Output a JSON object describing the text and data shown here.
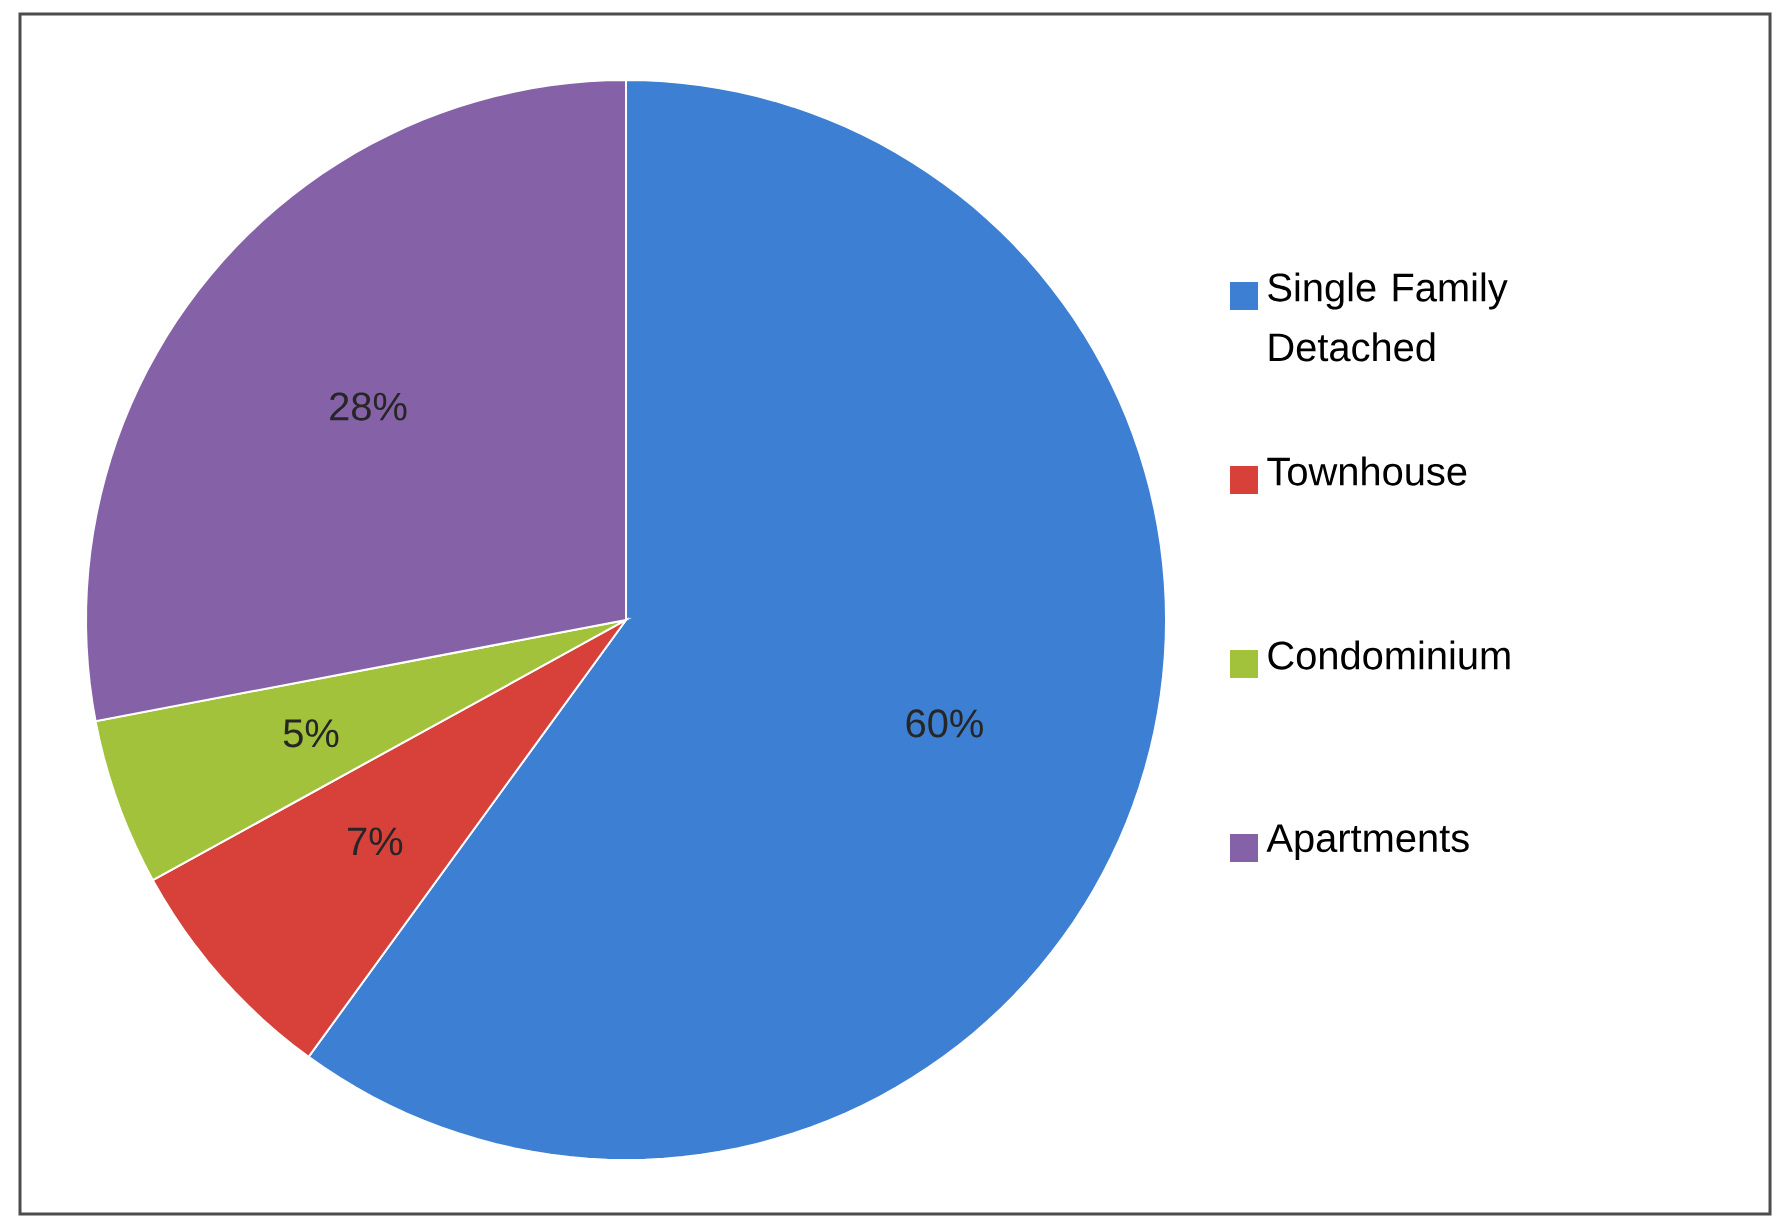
{
  "chart_data": {
    "type": "pie",
    "categories": [
      "Single Family Detached",
      "Townhouse",
      "Condominium",
      "Apartments"
    ],
    "values": [
      60,
      7,
      5,
      28
    ],
    "colors": [
      "#3d7fd2",
      "#d8403a",
      "#a3c23b",
      "#8562a8"
    ],
    "value_labels": [
      "60%",
      "7%",
      "5%",
      "28%"
    ],
    "legend": "right"
  }
}
